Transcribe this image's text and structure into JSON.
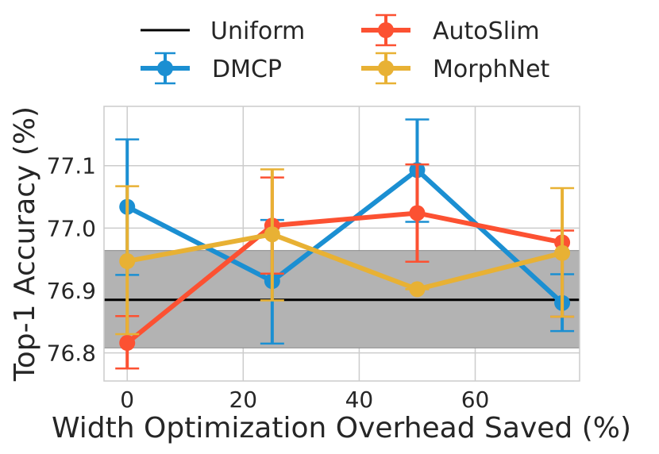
{
  "chart_data": {
    "type": "line",
    "xlabel": "Width Optimization Overhead Saved (%)",
    "ylabel": "Top-1 Accuracy (%)",
    "xlim": [
      -4,
      78
    ],
    "ylim": [
      76.755,
      77.195
    ],
    "xticks": [
      0,
      20,
      40,
      60
    ],
    "xtick_labels": [
      "0",
      "20",
      "40",
      "60"
    ],
    "yticks": [
      76.8,
      76.9,
      77.0,
      77.1
    ],
    "ytick_labels": [
      "76.8",
      "76.9",
      "77.0",
      "77.1"
    ],
    "grid": true,
    "legend": "top, outside, 2 columns",
    "uniform": {
      "name": "Uniform",
      "value": 76.885,
      "band": [
        76.808,
        76.964
      ],
      "color": "#000000",
      "band_color": "#b3b3b3"
    },
    "series": [
      {
        "name": "DMCP",
        "color": "#1b8fd2",
        "x": [
          0,
          25,
          50,
          75
        ],
        "values": [
          77.034,
          76.915,
          77.093,
          76.88
        ],
        "err_low": [
          76.925,
          76.815,
          77.01,
          76.835
        ],
        "err_high": [
          77.142,
          77.013,
          77.174,
          76.926
        ]
      },
      {
        "name": "AutoSlim",
        "color": "#fc5132",
        "x": [
          0,
          25,
          50,
          75
        ],
        "values": [
          76.816,
          77.004,
          77.024,
          76.977
        ],
        "err_low": [
          76.775,
          76.927,
          76.946,
          76.858
        ],
        "err_high": [
          76.859,
          77.081,
          77.102,
          76.996
        ]
      },
      {
        "name": "MorphNet",
        "color": "#e8b134",
        "x": [
          0,
          25,
          50,
          75
        ],
        "values": [
          76.947,
          76.99,
          76.902,
          76.96
        ],
        "err_low": [
          76.83,
          76.884,
          76.902,
          76.858
        ],
        "err_high": [
          77.067,
          77.094,
          76.902,
          77.064
        ]
      }
    ]
  }
}
